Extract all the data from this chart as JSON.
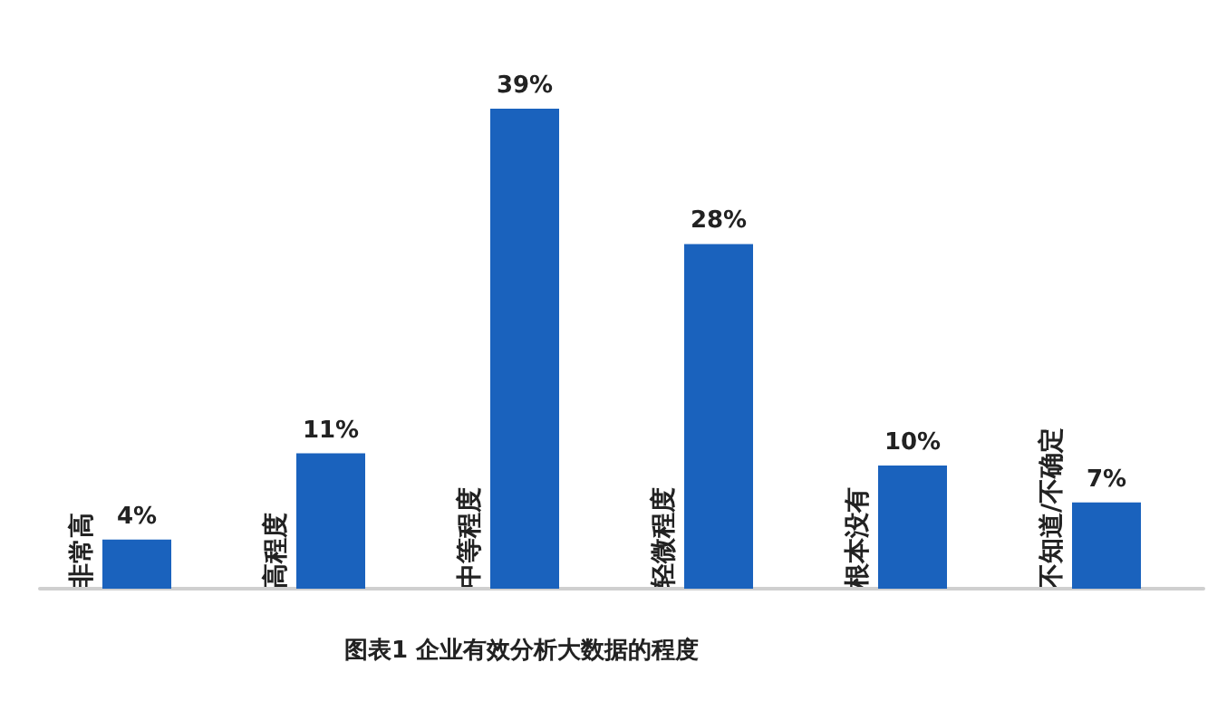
{
  "chart_data": {
    "type": "bar",
    "title": "图表1 企业有效分析大数据的程度",
    "categories": [
      "非常高",
      "高程度",
      "中等程度",
      "轻微程度",
      "根本没有",
      "不知道/不确定"
    ],
    "values": [
      4,
      11,
      39,
      28,
      10,
      7
    ],
    "value_labels": [
      "4%",
      "11%",
      "39%",
      "28%",
      "10%",
      "7%"
    ],
    "color": "#1a62bd"
  }
}
